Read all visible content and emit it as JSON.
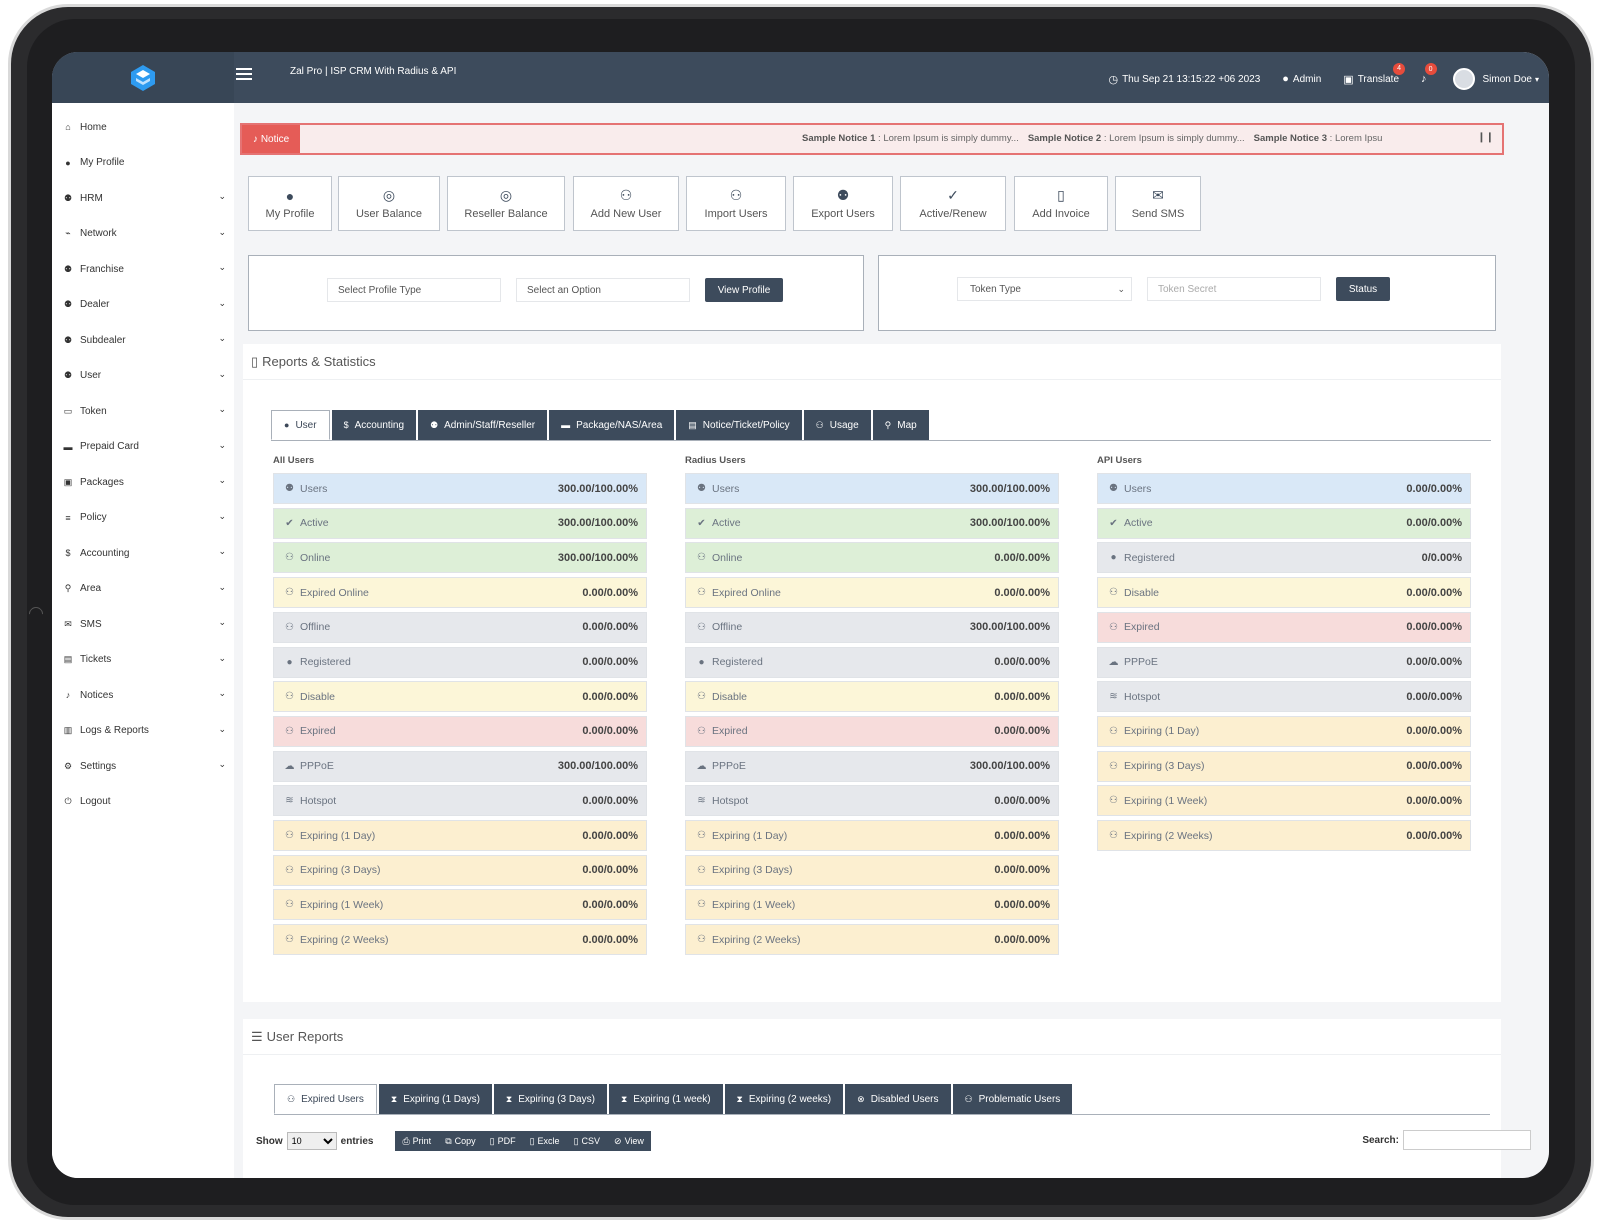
{
  "topbar": {
    "app_title": "Zal Pro | ISP CRM With Radius & API",
    "datetime": "Thu Sep 21 13:15:22 +06 2023",
    "admin_label": "Admin",
    "translate_label": "Translate",
    "translate_badge": "4",
    "notifications_badge": "0",
    "user_name": "Simon Doe"
  },
  "sidebar": {
    "items": [
      {
        "label": "Home",
        "icon": "home-icon",
        "glyph": "⌂",
        "chevron": false
      },
      {
        "label": "My Profile",
        "icon": "user-icon",
        "glyph": "●",
        "chevron": false
      },
      {
        "label": "HRM",
        "icon": "users-icon",
        "glyph": "⚉",
        "chevron": true
      },
      {
        "label": "Network",
        "icon": "network-icon",
        "glyph": "⌁",
        "chevron": true
      },
      {
        "label": "Franchise",
        "icon": "users-icon",
        "glyph": "⚉",
        "chevron": true
      },
      {
        "label": "Dealer",
        "icon": "users-icon",
        "glyph": "⚉",
        "chevron": true
      },
      {
        "label": "Subdealer",
        "icon": "users-icon",
        "glyph": "⚉",
        "chevron": true
      },
      {
        "label": "User",
        "icon": "users-icon",
        "glyph": "⚉",
        "chevron": true
      },
      {
        "label": "Token",
        "icon": "token-icon",
        "glyph": "▭",
        "chevron": true
      },
      {
        "label": "Prepaid Card",
        "icon": "card-icon",
        "glyph": "▬",
        "chevron": true
      },
      {
        "label": "Packages",
        "icon": "box-icon",
        "glyph": "▣",
        "chevron": true
      },
      {
        "label": "Policy",
        "icon": "list-icon",
        "glyph": "≡",
        "chevron": true
      },
      {
        "label": "Accounting",
        "icon": "dollar-icon",
        "glyph": "$",
        "chevron": true
      },
      {
        "label": "Area",
        "icon": "map-marker-icon",
        "glyph": "⚲",
        "chevron": true
      },
      {
        "label": "SMS",
        "icon": "comments-icon",
        "glyph": "✉",
        "chevron": true
      },
      {
        "label": "Tickets",
        "icon": "ticket-icon",
        "glyph": "▤",
        "chevron": true
      },
      {
        "label": "Notices",
        "icon": "bell-icon",
        "glyph": "♪",
        "chevron": true
      },
      {
        "label": "Logs & Reports",
        "icon": "book-icon",
        "glyph": "▥",
        "chevron": true
      },
      {
        "label": "Settings",
        "icon": "gears-icon",
        "glyph": "⚙",
        "chevron": true
      },
      {
        "label": "Logout",
        "icon": "power-icon",
        "glyph": "⏻",
        "chevron": false
      }
    ]
  },
  "notice": {
    "tag": "Notice",
    "items": [
      {
        "title": "Sample Notice 1",
        "text": "Lorem Ipsum is simply dummy..."
      },
      {
        "title": "Sample Notice 2",
        "text": "Lorem Ipsum is simply dummy..."
      },
      {
        "title": "Sample Notice 3",
        "text": "Lorem Ipsu"
      }
    ]
  },
  "quick_buttons": [
    {
      "label": "My Profile",
      "icon": "user-icon",
      "glyph": "●"
    },
    {
      "label": "User Balance",
      "icon": "coins-icon",
      "glyph": "◎"
    },
    {
      "label": "Reseller Balance",
      "icon": "coins-icon",
      "glyph": "◎"
    },
    {
      "label": "Add New User",
      "icon": "user-plus-icon",
      "glyph": "⚇"
    },
    {
      "label": "Import Users",
      "icon": "user-plus-icon",
      "glyph": "⚇"
    },
    {
      "label": "Export Users",
      "icon": "users-icon",
      "glyph": "⚉"
    },
    {
      "label": "Active/Renew",
      "icon": "user-check-icon",
      "glyph": "✓"
    },
    {
      "label": "Add Invoice",
      "icon": "file-icon",
      "glyph": "▯"
    },
    {
      "label": "Send SMS",
      "icon": "sms-icon",
      "glyph": "✉"
    }
  ],
  "profile_filter": {
    "profile_type_placeholder": "Select Profile Type",
    "option_placeholder": "Select an Option",
    "button": "View Profile"
  },
  "token_filter": {
    "token_type": "Token Type",
    "token_secret_placeholder": "Token Secret",
    "button": "Status"
  },
  "reports": {
    "title": "Reports & Statistics",
    "tabs": [
      {
        "label": "User",
        "glyph": "●",
        "active": true
      },
      {
        "label": "Accounting",
        "glyph": "$",
        "active": false
      },
      {
        "label": "Admin/Staff/Reseller",
        "glyph": "⚉",
        "active": false
      },
      {
        "label": "Package/NAS/Area",
        "glyph": "▬",
        "active": false
      },
      {
        "label": "Notice/Ticket/Policy",
        "glyph": "▤",
        "active": false
      },
      {
        "label": "Usage",
        "glyph": "⚇",
        "active": false
      },
      {
        "label": "Map",
        "glyph": "⚲",
        "active": false
      }
    ],
    "columns": [
      {
        "title": "All Users",
        "rows": [
          {
            "label": "Users",
            "value": "300.00/100.00%",
            "color": "blue",
            "glyph": "⚉"
          },
          {
            "label": "Active",
            "value": "300.00/100.00%",
            "color": "green",
            "glyph": "✔"
          },
          {
            "label": "Online",
            "value": "300.00/100.00%",
            "color": "green",
            "glyph": "⚇"
          },
          {
            "label": "Expired Online",
            "value": "0.00/0.00%",
            "color": "yellow",
            "glyph": "⚇"
          },
          {
            "label": "Offline",
            "value": "0.00/0.00%",
            "color": "grey",
            "glyph": "⚇"
          },
          {
            "label": "Registered",
            "value": "0.00/0.00%",
            "color": "grey",
            "glyph": "●"
          },
          {
            "label": "Disable",
            "value": "0.00/0.00%",
            "color": "yellow",
            "glyph": "⚇"
          },
          {
            "label": "Expired",
            "value": "0.00/0.00%",
            "color": "red",
            "glyph": "⚇"
          },
          {
            "label": "PPPoE",
            "value": "300.00/100.00%",
            "color": "grey",
            "glyph": "☁"
          },
          {
            "label": "Hotspot",
            "value": "0.00/0.00%",
            "color": "grey",
            "glyph": "≋"
          },
          {
            "label": "Expiring (1 Day)",
            "value": "0.00/0.00%",
            "color": "peach",
            "glyph": "⚇"
          },
          {
            "label": "Expiring (3 Days)",
            "value": "0.00/0.00%",
            "color": "peach",
            "glyph": "⚇"
          },
          {
            "label": "Expiring (1 Week)",
            "value": "0.00/0.00%",
            "color": "peach",
            "glyph": "⚇"
          },
          {
            "label": "Expiring (2 Weeks)",
            "value": "0.00/0.00%",
            "color": "peach",
            "glyph": "⚇"
          }
        ]
      },
      {
        "title": "Radius Users",
        "rows": [
          {
            "label": "Users",
            "value": "300.00/100.00%",
            "color": "blue",
            "glyph": "⚉"
          },
          {
            "label": "Active",
            "value": "300.00/100.00%",
            "color": "green",
            "glyph": "✔"
          },
          {
            "label": "Online",
            "value": "0.00/0.00%",
            "color": "green",
            "glyph": "⚇"
          },
          {
            "label": "Expired Online",
            "value": "0.00/0.00%",
            "color": "yellow",
            "glyph": "⚇"
          },
          {
            "label": "Offline",
            "value": "300.00/100.00%",
            "color": "grey",
            "glyph": "⚇"
          },
          {
            "label": "Registered",
            "value": "0.00/0.00%",
            "color": "grey",
            "glyph": "●"
          },
          {
            "label": "Disable",
            "value": "0.00/0.00%",
            "color": "yellow",
            "glyph": "⚇"
          },
          {
            "label": "Expired",
            "value": "0.00/0.00%",
            "color": "red",
            "glyph": "⚇"
          },
          {
            "label": "PPPoE",
            "value": "300.00/100.00%",
            "color": "grey",
            "glyph": "☁"
          },
          {
            "label": "Hotspot",
            "value": "0.00/0.00%",
            "color": "grey",
            "glyph": "≋"
          },
          {
            "label": "Expiring (1 Day)",
            "value": "0.00/0.00%",
            "color": "peach",
            "glyph": "⚇"
          },
          {
            "label": "Expiring (3 Days)",
            "value": "0.00/0.00%",
            "color": "peach",
            "glyph": "⚇"
          },
          {
            "label": "Expiring (1 Week)",
            "value": "0.00/0.00%",
            "color": "peach",
            "glyph": "⚇"
          },
          {
            "label": "Expiring (2 Weeks)",
            "value": "0.00/0.00%",
            "color": "peach",
            "glyph": "⚇"
          }
        ]
      },
      {
        "title": "API Users",
        "rows": [
          {
            "label": "Users",
            "value": "0.00/0.00%",
            "color": "blue",
            "glyph": "⚉"
          },
          {
            "label": "Active",
            "value": "0.00/0.00%",
            "color": "green",
            "glyph": "✔"
          },
          {
            "label": "Registered",
            "value": "0/0.00%",
            "color": "grey",
            "glyph": "●"
          },
          {
            "label": "Disable",
            "value": "0.00/0.00%",
            "color": "yellow",
            "glyph": "⚇"
          },
          {
            "label": "Expired",
            "value": "0.00/0.00%",
            "color": "red",
            "glyph": "⚇"
          },
          {
            "label": "PPPoE",
            "value": "0.00/0.00%",
            "color": "grey",
            "glyph": "☁"
          },
          {
            "label": "Hotspot",
            "value": "0.00/0.00%",
            "color": "grey",
            "glyph": "≋"
          },
          {
            "label": "Expiring (1 Day)",
            "value": "0.00/0.00%",
            "color": "peach",
            "glyph": "⚇"
          },
          {
            "label": "Expiring (3 Days)",
            "value": "0.00/0.00%",
            "color": "peach",
            "glyph": "⚇"
          },
          {
            "label": "Expiring (1 Week)",
            "value": "0.00/0.00%",
            "color": "peach",
            "glyph": "⚇"
          },
          {
            "label": "Expiring (2 Weeks)",
            "value": "0.00/0.00%",
            "color": "peach",
            "glyph": "⚇"
          }
        ]
      }
    ]
  },
  "user_reports": {
    "title": "User Reports",
    "tabs": [
      {
        "label": "Expired Users",
        "glyph": "⚇",
        "active": true
      },
      {
        "label": "Expiring (1 Days)",
        "glyph": "⧗",
        "active": false
      },
      {
        "label": "Expiring (3 Days)",
        "glyph": "⧗",
        "active": false
      },
      {
        "label": "Expiring (1 week)",
        "glyph": "⧗",
        "active": false
      },
      {
        "label": "Expiring (2 weeks)",
        "glyph": "⧗",
        "active": false
      },
      {
        "label": "Disabled Users",
        "glyph": "⊗",
        "active": false
      },
      {
        "label": "Problematic Users",
        "glyph": "⚇",
        "active": false
      }
    ],
    "show_label": "Show",
    "entries_value": "10",
    "entries_label": "entries",
    "tools": [
      "Print",
      "Copy",
      "PDF",
      "Excle",
      "CSV",
      "View"
    ],
    "search_label": "Search:"
  },
  "colors": {
    "primary": "#3d4b5c",
    "notice": "#e55c57",
    "blue": "#d9e8f7",
    "green": "#ddefd7",
    "yellow": "#fcf6d8",
    "grey": "#e6e8ec",
    "red": "#f7dcdb",
    "peach": "#fcefd0"
  }
}
